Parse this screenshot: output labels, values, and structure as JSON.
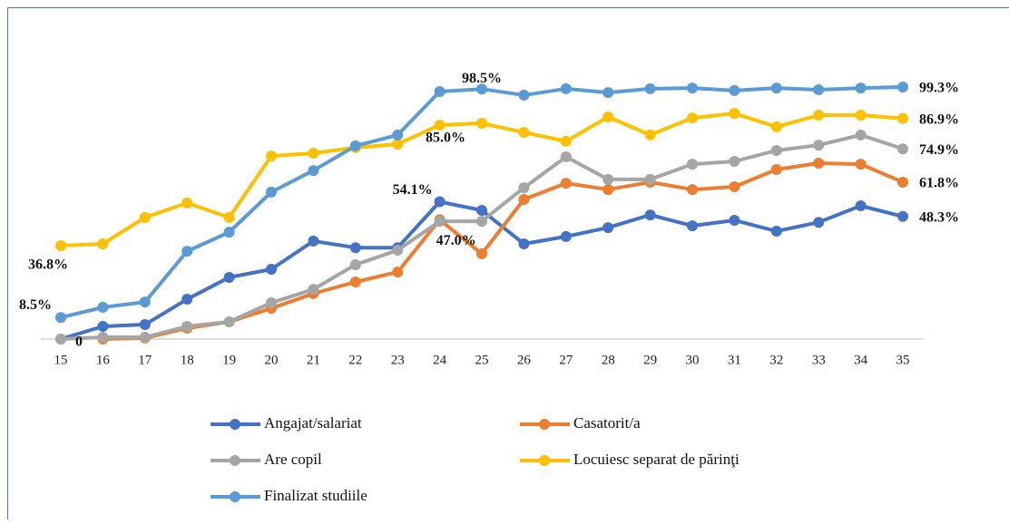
{
  "chart_data": {
    "type": "line",
    "categories": [
      15,
      16,
      17,
      18,
      19,
      20,
      21,
      22,
      23,
      24,
      25,
      26,
      27,
      28,
      29,
      30,
      31,
      32,
      33,
      34,
      35
    ],
    "ylim": [
      0,
      100
    ],
    "series": [
      {
        "name": "Angajat/salariat",
        "color": "#4472c4",
        "values": [
          0,
          5,
          5.7,
          15.7,
          24.3,
          27.5,
          38.6,
          36,
          36,
          54.1,
          50.7,
          37.5,
          40.4,
          43.9,
          48.9,
          44.6,
          46.8,
          42.5,
          46,
          52.5,
          48.3
        ],
        "value_labels": [
          null,
          null,
          null,
          null,
          null,
          null,
          null,
          null,
          null,
          "54.1%",
          null,
          null,
          null,
          null,
          null,
          null,
          null,
          null,
          null,
          null,
          "48.3%"
        ]
      },
      {
        "name": "Casatorit/a",
        "color": "#ed7d31",
        "values": [
          null,
          0,
          0.4,
          4.3,
          6.8,
          12.1,
          17.9,
          22.5,
          26.4,
          47,
          33.6,
          55,
          61.4,
          58.9,
          61.8,
          58.9,
          60,
          66.8,
          69.3,
          68.9,
          61.8
        ],
        "value_labels": [
          null,
          null,
          null,
          null,
          null,
          null,
          null,
          null,
          null,
          "47.0%",
          null,
          null,
          null,
          null,
          null,
          null,
          null,
          null,
          null,
          null,
          "61.8%"
        ]
      },
      {
        "name": "Are copil",
        "color": "#a5a5a5",
        "values": [
          0,
          0.7,
          0.7,
          5,
          6.8,
          14.3,
          19.6,
          29.3,
          35,
          46.4,
          46.4,
          59.6,
          71.8,
          62.9,
          62.9,
          68.9,
          70,
          74.3,
          76.4,
          80.4,
          74.9
        ],
        "value_labels": [
          "0",
          null,
          null,
          null,
          null,
          null,
          null,
          null,
          null,
          null,
          null,
          null,
          null,
          null,
          null,
          null,
          null,
          null,
          null,
          null,
          "74.9%"
        ]
      },
      {
        "name": "Locuiesc separat de părinţi",
        "color": "#ffc000",
        "values": [
          36.8,
          37.5,
          47.9,
          53.6,
          47.9,
          72.1,
          73.2,
          75.4,
          76.8,
          84.3,
          85,
          81.4,
          77.9,
          87.5,
          80.4,
          87.1,
          88.9,
          83.6,
          88.2,
          88.2,
          86.9
        ],
        "value_labels": [
          "36.8%",
          null,
          null,
          null,
          null,
          null,
          null,
          null,
          null,
          null,
          "85.0%",
          null,
          null,
          null,
          null,
          null,
          null,
          null,
          null,
          null,
          "86.9%"
        ]
      },
      {
        "name": "Finalizat studiile",
        "color": "#5b9bd5",
        "values": [
          8.5,
          12.5,
          14.6,
          34.6,
          42.1,
          57.9,
          66.4,
          76.1,
          80.4,
          97.5,
          98.5,
          96.1,
          98.6,
          97.1,
          98.6,
          98.9,
          97.9,
          98.9,
          98.2,
          98.9,
          99.3
        ],
        "value_labels": [
          "8.5%",
          null,
          null,
          null,
          null,
          null,
          null,
          null,
          null,
          null,
          "98.5%",
          null,
          null,
          null,
          null,
          null,
          null,
          null,
          null,
          null,
          "99.3%"
        ]
      }
    ]
  }
}
